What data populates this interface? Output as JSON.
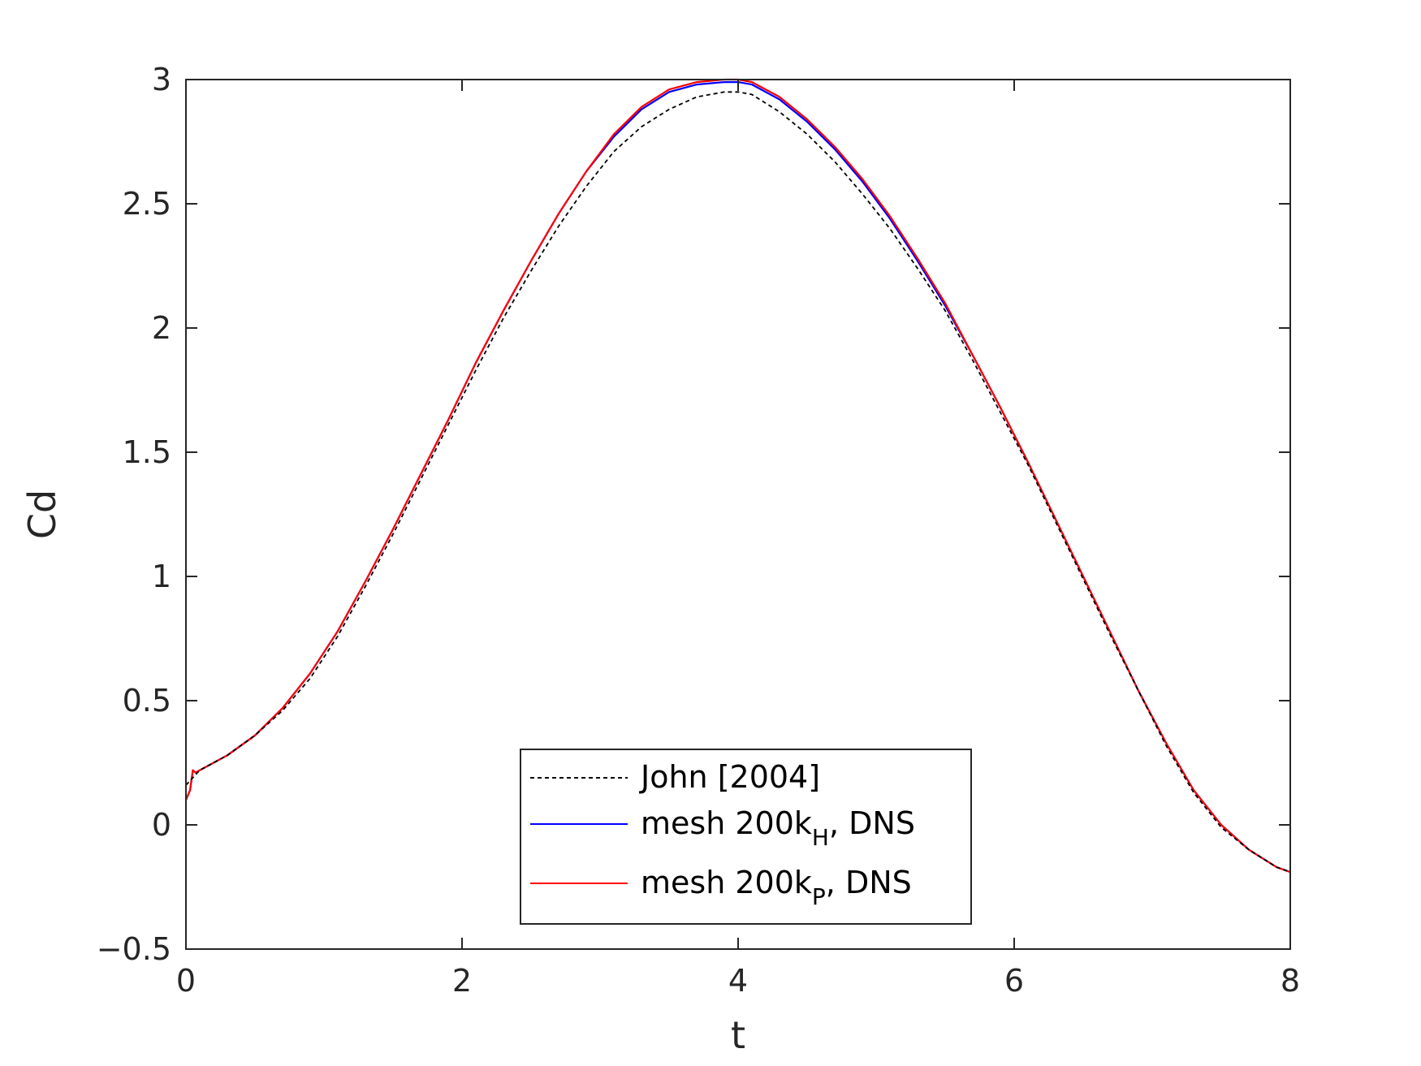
{
  "chart_data": {
    "type": "line",
    "title": "",
    "xlabel": "t",
    "ylabel": "Cd",
    "xlim": [
      0,
      8
    ],
    "ylim": [
      -0.5,
      3
    ],
    "xticks": [
      0,
      2,
      4,
      6,
      8
    ],
    "xtick_labels": [
      "0",
      "2",
      "4",
      "6",
      "8"
    ],
    "yticks": [
      -0.5,
      0,
      0.5,
      1,
      1.5,
      2,
      2.5,
      3
    ],
    "ytick_labels": [
      "−0.5",
      "0",
      "0.5",
      "1",
      "1.5",
      "2",
      "2.5",
      "3"
    ],
    "grid": false,
    "legend_position": "bottom-center",
    "series": [
      {
        "name": "John [2004]",
        "name_main": "John [2004]",
        "name_sub": "",
        "name_suffix": "",
        "color": "#000000",
        "style": "dashed",
        "x": [
          0,
          0.05,
          0.1,
          0.3,
          0.5,
          0.7,
          0.9,
          1.1,
          1.3,
          1.5,
          1.7,
          1.9,
          2.1,
          2.3,
          2.5,
          2.7,
          2.9,
          3.1,
          3.3,
          3.5,
          3.7,
          3.9,
          4.0,
          4.1,
          4.3,
          4.5,
          4.7,
          4.9,
          5.1,
          5.3,
          5.5,
          5.7,
          5.9,
          6.1,
          6.3,
          6.5,
          6.7,
          6.9,
          7.1,
          7.3,
          7.5,
          7.7,
          7.9,
          8.0
        ],
        "y": [
          0.16,
          0.19,
          0.22,
          0.28,
          0.36,
          0.46,
          0.59,
          0.76,
          0.96,
          1.17,
          1.39,
          1.61,
          1.83,
          2.04,
          2.23,
          2.41,
          2.57,
          2.71,
          2.81,
          2.88,
          2.93,
          2.95,
          2.95,
          2.94,
          2.87,
          2.78,
          2.67,
          2.54,
          2.4,
          2.24,
          2.07,
          1.87,
          1.66,
          1.45,
          1.22,
          0.99,
          0.76,
          0.54,
          0.32,
          0.13,
          -0.01,
          -0.1,
          -0.17,
          -0.19
        ]
      },
      {
        "name": "mesh 200kH, DNS",
        "name_main": "mesh 200k",
        "name_sub": "H",
        "name_suffix": ", DNS",
        "color": "#0000ff",
        "style": "solid",
        "x": [
          0,
          0.03,
          0.05,
          0.07,
          0.1,
          0.3,
          0.5,
          0.7,
          0.9,
          1.1,
          1.3,
          1.5,
          1.7,
          1.9,
          2.1,
          2.3,
          2.5,
          2.7,
          2.9,
          3.1,
          3.3,
          3.5,
          3.7,
          3.9,
          4.0,
          4.1,
          4.3,
          4.5,
          4.7,
          4.9,
          5.1,
          5.3,
          5.5,
          5.7,
          5.9,
          6.1,
          6.3,
          6.5,
          6.7,
          6.9,
          7.1,
          7.3,
          7.5,
          7.7,
          7.9,
          8.0
        ],
        "y": [
          0.1,
          0.14,
          0.22,
          0.21,
          0.22,
          0.28,
          0.36,
          0.47,
          0.61,
          0.78,
          0.98,
          1.19,
          1.41,
          1.63,
          1.86,
          2.07,
          2.27,
          2.46,
          2.63,
          2.77,
          2.88,
          2.95,
          2.98,
          2.99,
          2.99,
          2.98,
          2.92,
          2.83,
          2.72,
          2.59,
          2.44,
          2.27,
          2.09,
          1.89,
          1.68,
          1.46,
          1.23,
          1.0,
          0.77,
          0.54,
          0.33,
          0.14,
          0.0,
          -0.1,
          -0.17,
          -0.19
        ]
      },
      {
        "name": "mesh 200kP, DNS",
        "name_main": "mesh 200k",
        "name_sub": "P",
        "name_suffix": ", DNS",
        "color": "#ff0000",
        "style": "solid",
        "x": [
          0,
          0.03,
          0.05,
          0.07,
          0.1,
          0.3,
          0.5,
          0.7,
          0.9,
          1.1,
          1.3,
          1.5,
          1.7,
          1.9,
          2.1,
          2.3,
          2.5,
          2.7,
          2.9,
          3.1,
          3.3,
          3.5,
          3.7,
          3.9,
          4.0,
          4.1,
          4.3,
          4.5,
          4.7,
          4.9,
          5.1,
          5.3,
          5.5,
          5.7,
          5.9,
          6.1,
          6.3,
          6.5,
          6.7,
          6.9,
          7.1,
          7.3,
          7.5,
          7.7,
          7.9,
          8.0
        ],
        "y": [
          0.1,
          0.14,
          0.22,
          0.21,
          0.22,
          0.28,
          0.36,
          0.47,
          0.61,
          0.78,
          0.98,
          1.19,
          1.41,
          1.63,
          1.86,
          2.07,
          2.27,
          2.46,
          2.63,
          2.78,
          2.89,
          2.96,
          2.99,
          3.0,
          3.0,
          2.99,
          2.93,
          2.84,
          2.73,
          2.6,
          2.45,
          2.28,
          2.1,
          1.89,
          1.68,
          1.46,
          1.23,
          1.0,
          0.77,
          0.54,
          0.33,
          0.14,
          0.0,
          -0.1,
          -0.17,
          -0.19
        ]
      }
    ]
  }
}
